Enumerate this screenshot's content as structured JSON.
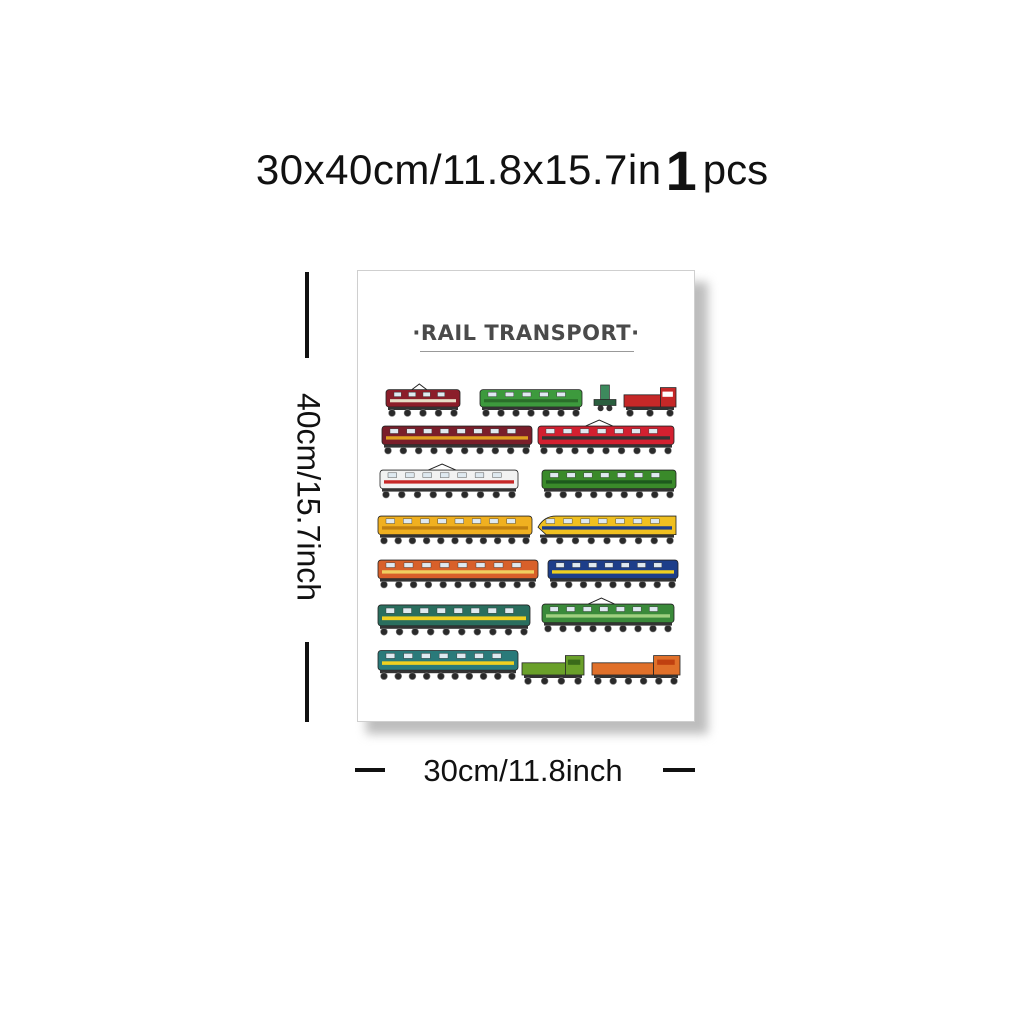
{
  "headline": {
    "size_text": "30x40cm/11.8x15.7in",
    "quantity_number": "1",
    "quantity_unit": "pcs"
  },
  "poster": {
    "title": "·RAIL TRANSPORT·",
    "trains": [
      {
        "kind": "electric",
        "body": "#8b1e2a",
        "stripe": "#e8e0c8"
      },
      {
        "kind": "diesel",
        "body": "#3d9a3d",
        "stripe": "#2a6e2a"
      },
      {
        "kind": "tower",
        "body": "#3d8a5d",
        "stripe": "#2a5e3e"
      },
      {
        "kind": "shunter",
        "body": "#c62828",
        "stripe": "#ffffff"
      },
      {
        "kind": "diesel",
        "body": "#7a1e2a",
        "stripe": "#e0a020"
      },
      {
        "kind": "electric",
        "body": "#d32030",
        "stripe": "#333333"
      },
      {
        "kind": "electric",
        "body": "#f2f2f2",
        "stripe": "#c62828"
      },
      {
        "kind": "diesel",
        "body": "#3a8a2a",
        "stripe": "#1d5a1d"
      },
      {
        "kind": "diesel",
        "body": "#f0b020",
        "stripe": "#c08010"
      },
      {
        "kind": "highspeed",
        "body": "#f0c020",
        "stripe": "#1d3e8a"
      },
      {
        "kind": "diesel",
        "body": "#d8602a",
        "stripe": "#f0d060"
      },
      {
        "kind": "diesel",
        "body": "#1d3e8a",
        "stripe": "#f0d020"
      },
      {
        "kind": "diesel",
        "body": "#2a6e5e",
        "stripe": "#f0d020"
      },
      {
        "kind": "electric",
        "body": "#3a8a3a",
        "stripe": "#a0d080"
      },
      {
        "kind": "diesel",
        "body": "#2a7a7a",
        "stripe": "#f0d020"
      },
      {
        "kind": "shunter",
        "body": "#6aa02a",
        "stripe": "#3a6a1a"
      },
      {
        "kind": "shunter",
        "body": "#e0702a",
        "stripe": "#c04010"
      }
    ]
  },
  "dimensions": {
    "height_label": "40cm/15.7inch",
    "width_label": "30cm/11.8inch"
  },
  "colors": {
    "text": "#111111",
    "title_gray": "#4a4a4a",
    "shadow": "#bdbdbd"
  }
}
